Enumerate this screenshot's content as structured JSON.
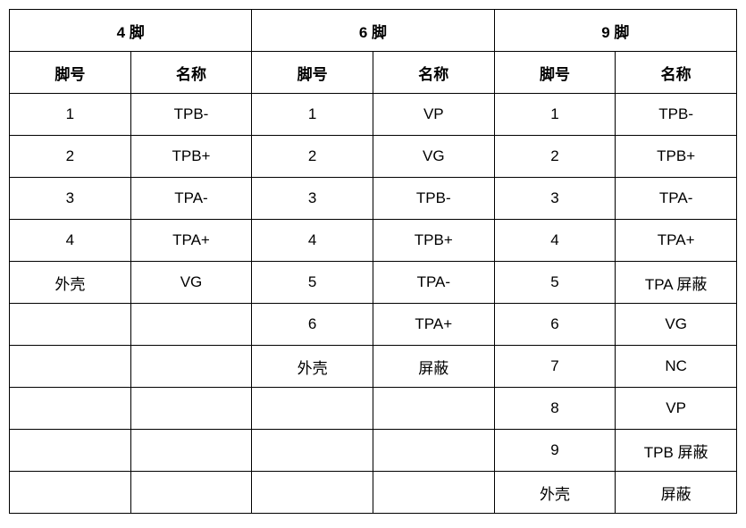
{
  "table": {
    "top_headers": [
      "4 脚",
      "6 脚",
      "9 脚"
    ],
    "sub_headers": [
      "脚号",
      "名称",
      "脚号",
      "名称",
      "脚号",
      "名称"
    ],
    "rows": [
      [
        "1",
        "TPB-",
        "1",
        "VP",
        "1",
        "TPB-"
      ],
      [
        "2",
        "TPB+",
        "2",
        "VG",
        "2",
        "TPB+"
      ],
      [
        "3",
        "TPA-",
        "3",
        "TPB-",
        "3",
        "TPA-"
      ],
      [
        "4",
        "TPA+",
        "4",
        "TPB+",
        "4",
        "TPA+"
      ],
      [
        "外壳",
        "VG",
        "5",
        "TPA-",
        "5",
        "TPA 屏蔽"
      ],
      [
        "",
        "",
        "6",
        "TPA+",
        "6",
        "VG"
      ],
      [
        "",
        "",
        "外壳",
        "屏蔽",
        "7",
        "NC"
      ],
      [
        "",
        "",
        "",
        "",
        "8",
        "VP"
      ],
      [
        "",
        "",
        "",
        "",
        "9",
        "TPB 屏蔽"
      ],
      [
        "",
        "",
        "",
        "",
        "外壳",
        "屏蔽"
      ]
    ]
  }
}
